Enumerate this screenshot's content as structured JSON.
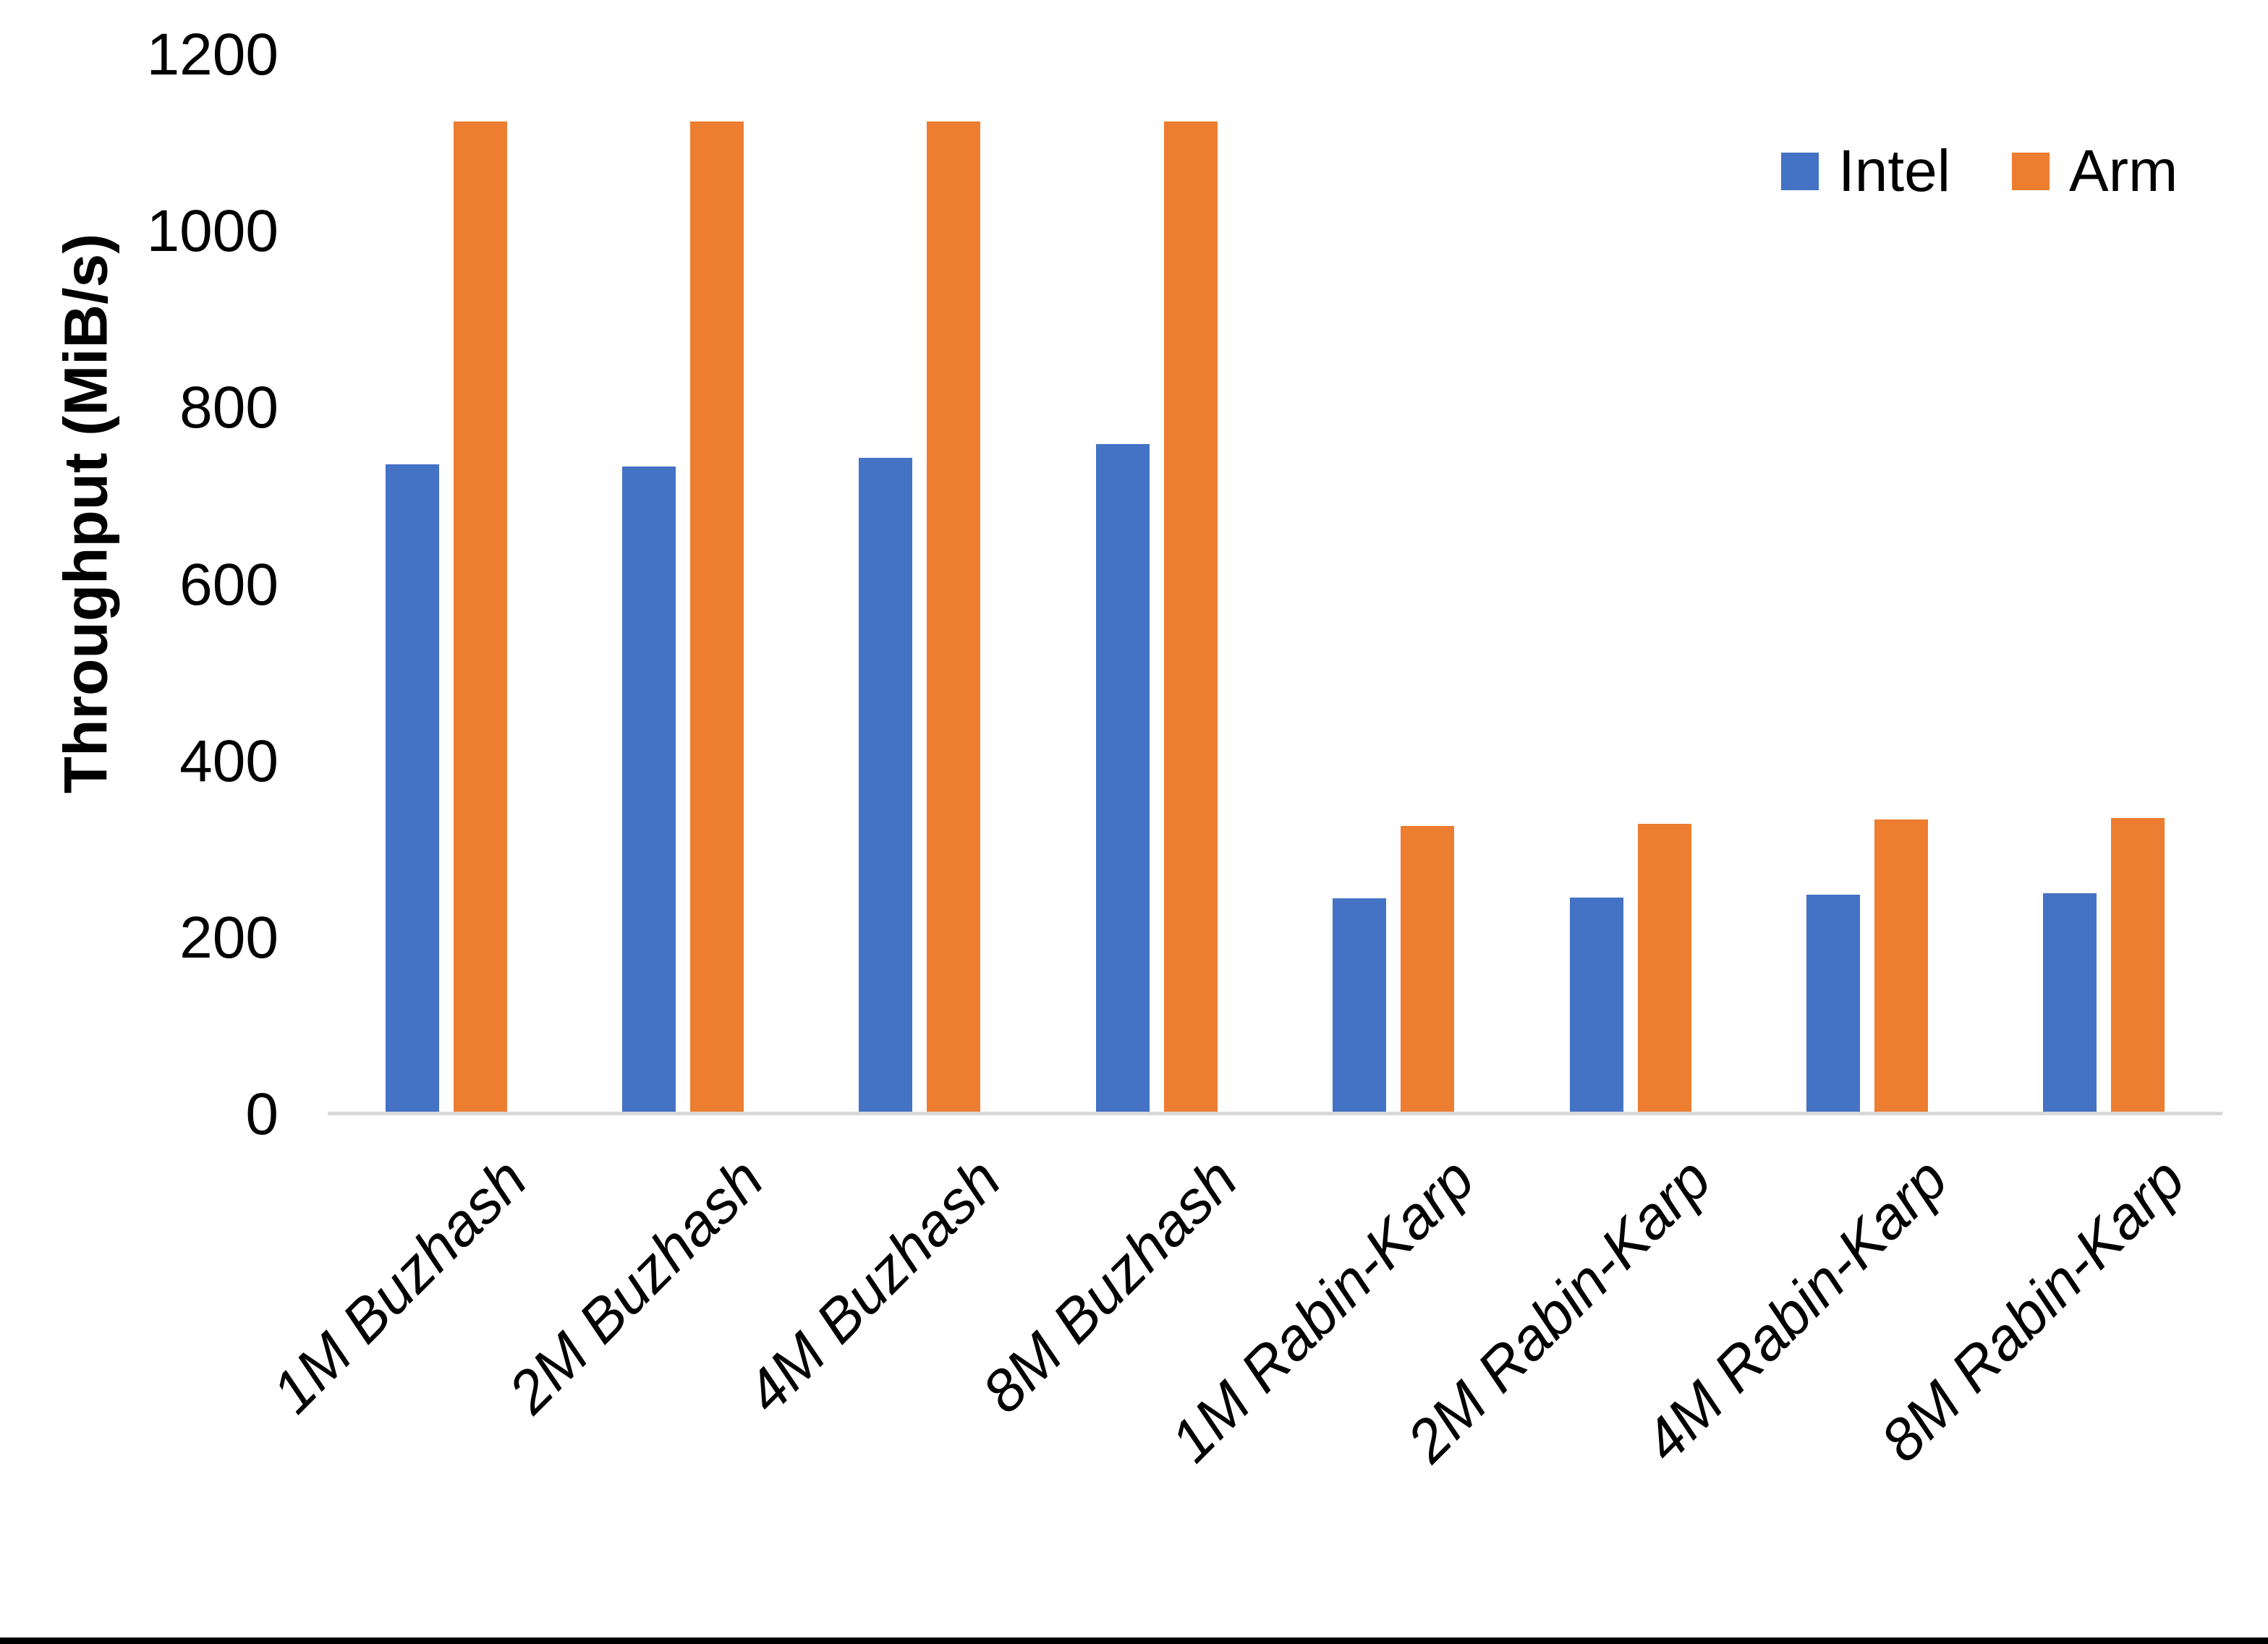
{
  "chart_data": {
    "type": "bar",
    "title": "",
    "xlabel": "",
    "ylabel": "Throughput (MiB/s)",
    "ylim": [
      0,
      1200
    ],
    "yticks": [
      0,
      200,
      400,
      600,
      800,
      1000,
      1200
    ],
    "grid": false,
    "legend_position": "top-right",
    "axis_line_color": "#D9D9D9",
    "categories": [
      "1M Buzhash",
      "2M Buzhash",
      "4M Buzhash",
      "8M Buzhash",
      "1M Rabin-Karp",
      "2M Rabin-Karp",
      "4M Rabin-Karp",
      "8M Rabin-Karp"
    ],
    "series": [
      {
        "name": "Intel",
        "color": "#4472C4",
        "values": [
          736,
          734,
          744,
          759,
          245,
          246,
          249,
          251
        ]
      },
      {
        "name": "Arm",
        "color": "#ED7D31",
        "values": [
          1125,
          1125,
          1125,
          1125,
          327,
          329,
          334,
          336
        ]
      }
    ]
  }
}
